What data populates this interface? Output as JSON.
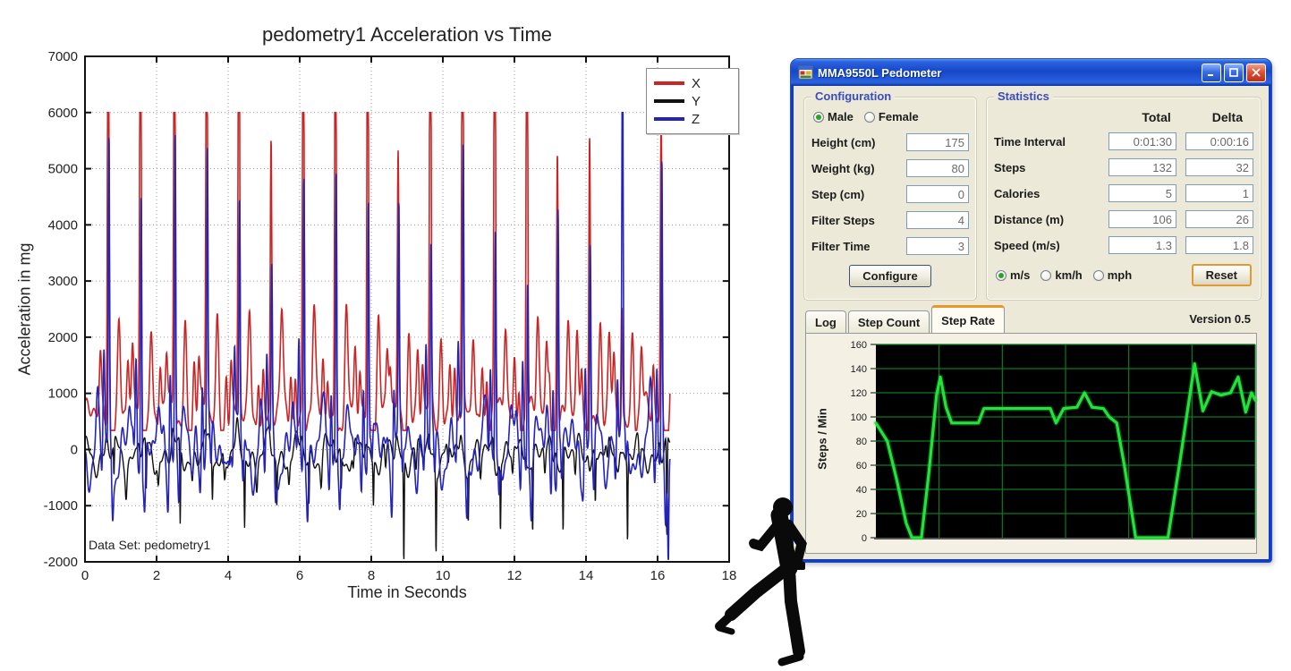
{
  "chart_data": [
    {
      "type": "line",
      "title": "pedometry1 Acceleration vs Time",
      "xlabel": "Time in Seconds",
      "ylabel": "Acceleration in mg",
      "annotation": "Data Set: pedometry1",
      "xlim": [
        0,
        18
      ],
      "ylim": [
        -2000,
        7000
      ],
      "xticks": [
        0,
        2,
        4,
        6,
        8,
        10,
        12,
        14,
        16,
        18
      ],
      "yticks": [
        -2000,
        -1000,
        0,
        1000,
        2000,
        3000,
        4000,
        5000,
        6000,
        7000
      ],
      "grid": "dotted",
      "legend_position": "top-right",
      "series_meta": [
        {
          "name": "X",
          "color": "#cc2424"
        },
        {
          "name": "Y",
          "color": "#111111"
        },
        {
          "name": "Z",
          "color": "#2424bb"
        }
      ],
      "saturation_level": 6000,
      "t_end": 16.35,
      "step_events": {
        "times": [
          0.65,
          1.55,
          2.5,
          3.4,
          4.3,
          5.2,
          6.1,
          7.0,
          7.9,
          8.75,
          9.65,
          10.55,
          11.45,
          12.35,
          13.2,
          14.1,
          15.0,
          16.1
        ],
        "x_peaks": [
          6000,
          6000,
          6000,
          6000,
          6000,
          5370,
          6000,
          6000,
          6000,
          5220,
          6000,
          6000,
          6000,
          6000,
          5580,
          5950,
          2700,
          5900
        ],
        "z_peaks": [
          5300,
          5050,
          5850,
          4900,
          4300,
          3050,
          5300,
          5100,
          4800,
          4100,
          3400,
          5050,
          4300,
          3500,
          4600,
          3400,
          6000,
          5250
        ],
        "y_dips": [
          -700,
          -950,
          -1550,
          -750,
          -1300,
          -800,
          -950,
          -700,
          -850,
          -1900,
          -1500,
          -950,
          -1250,
          -1350,
          -1450,
          -950,
          -1550,
          -1900
        ]
      }
    },
    {
      "type": "line",
      "ylabel": "Steps / Min",
      "ylim": [
        0,
        160
      ],
      "ytick_step": 20,
      "yticks": [
        0,
        20,
        40,
        60,
        80,
        100,
        120,
        140,
        160
      ],
      "v_divisions": 6,
      "bg": "#000000",
      "grid_color": "#0c7a22",
      "line_color": "#23e23c",
      "points": [
        [
          0,
          95
        ],
        [
          0.03,
          80
        ],
        [
          0.055,
          48
        ],
        [
          0.08,
          12
        ],
        [
          0.095,
          0
        ],
        [
          0.12,
          0
        ],
        [
          0.14,
          55
        ],
        [
          0.16,
          118
        ],
        [
          0.17,
          133
        ],
        [
          0.185,
          108
        ],
        [
          0.2,
          95
        ],
        [
          0.27,
          95
        ],
        [
          0.285,
          107
        ],
        [
          0.46,
          107
        ],
        [
          0.475,
          95
        ],
        [
          0.495,
          107
        ],
        [
          0.53,
          108
        ],
        [
          0.55,
          120
        ],
        [
          0.57,
          108
        ],
        [
          0.6,
          107
        ],
        [
          0.615,
          100
        ],
        [
          0.635,
          95
        ],
        [
          0.655,
          60
        ],
        [
          0.675,
          20
        ],
        [
          0.685,
          0
        ],
        [
          0.77,
          0
        ],
        [
          0.8,
          60
        ],
        [
          0.84,
          144
        ],
        [
          0.862,
          105
        ],
        [
          0.885,
          121
        ],
        [
          0.91,
          118
        ],
        [
          0.935,
          120
        ],
        [
          0.955,
          133
        ],
        [
          0.975,
          104
        ],
        [
          0.99,
          120
        ],
        [
          1,
          114
        ]
      ]
    }
  ],
  "pedometer": {
    "window_title": "MMA9550L Pedometer",
    "titlebar": {
      "minimize": "–",
      "maximize": "□",
      "close": "✕"
    },
    "configuration": {
      "label": "Configuration",
      "gender_options": [
        {
          "label": "Male",
          "selected": true
        },
        {
          "label": "Female",
          "selected": false
        }
      ],
      "fields": [
        {
          "label": "Height (cm)",
          "value": "175"
        },
        {
          "label": "Weight (kg)",
          "value": "80"
        },
        {
          "label": "Step (cm)",
          "value": "0"
        },
        {
          "label": "Filter Steps",
          "value": "4"
        },
        {
          "label": "Filter Time",
          "value": "3"
        }
      ],
      "configure_button": "Configure"
    },
    "statistics": {
      "label": "Statistics",
      "columns": [
        "Total",
        "Delta"
      ],
      "rows": [
        {
          "label": "Time Interval",
          "total": "0:01:30",
          "delta": "0:00:16"
        },
        {
          "label": "Steps",
          "total": "132",
          "delta": "32"
        },
        {
          "label": "Calories",
          "total": "5",
          "delta": "1"
        },
        {
          "label": "Distance (m)",
          "total": "106",
          "delta": "26"
        },
        {
          "label": "Speed (m/s)",
          "total": "1.3",
          "delta": "1.8"
        }
      ],
      "speed_units": [
        {
          "label": "m/s",
          "selected": true
        },
        {
          "label": "km/h",
          "selected": false
        },
        {
          "label": "mph",
          "selected": false
        }
      ],
      "reset_button": "Reset"
    },
    "tabs": [
      {
        "label": "Log",
        "active": false
      },
      {
        "label": "Step Count",
        "active": false
      },
      {
        "label": "Step Rate",
        "active": true
      }
    ],
    "version": "Version 0.5"
  },
  "decor": {
    "runner": "running-person-silhouette"
  }
}
